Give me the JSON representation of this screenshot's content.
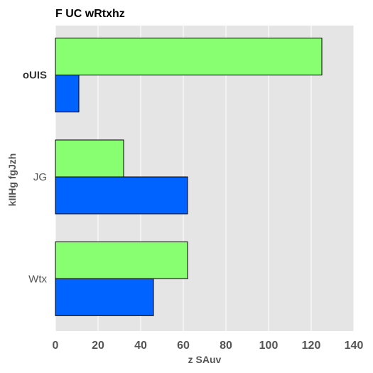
{
  "chart_data": {
    "type": "bar",
    "orientation": "horizontal",
    "title": "F UC wRtxhz",
    "xlabel": "z SAuv",
    "ylabel": "kIIHg  fgJzh",
    "categories": [
      "oUIS",
      "JG",
      "Wtx"
    ],
    "xlim": [
      0,
      140
    ],
    "xticks": [
      0,
      20,
      40,
      60,
      80,
      100,
      120,
      140
    ],
    "grid": true,
    "series": [
      {
        "color": "#88ff70",
        "values": [
          125,
          32,
          62
        ]
      },
      {
        "color": "#0062ff",
        "values": [
          11,
          62,
          46
        ]
      }
    ]
  },
  "colors": {
    "plot_background": "#e5e5e5",
    "grid": "#ffffff",
    "bar_edge": "#000000"
  }
}
